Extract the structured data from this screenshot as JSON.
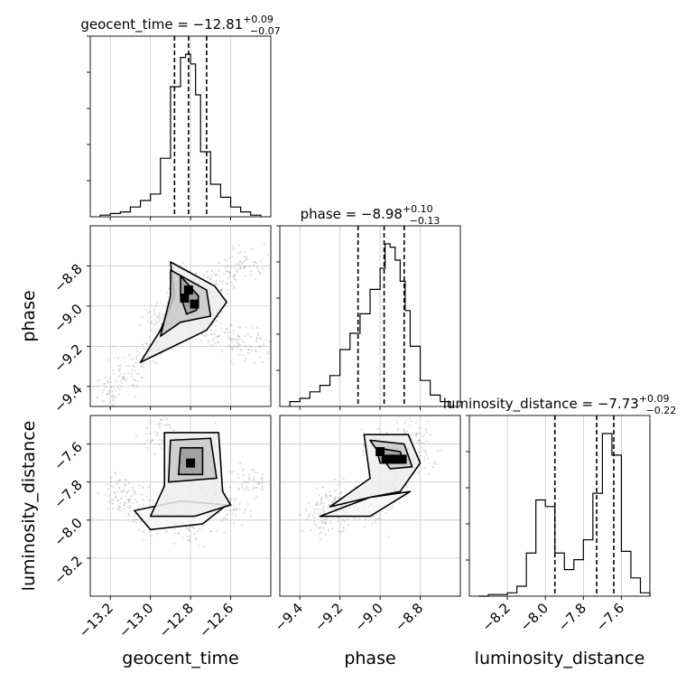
{
  "chart_data": {
    "type": "corner",
    "parameters": [
      "geocent_time",
      "phase",
      "luminosity_distance"
    ],
    "axis_labels": [
      "geocent_time",
      "phase",
      "luminosity_distance"
    ],
    "ranges": {
      "geocent_time": [
        -13.3,
        -12.4
      ],
      "phase": [
        -9.5,
        -8.6
      ],
      "luminosity_distance": [
        -8.4,
        -7.45
      ]
    },
    "ticks": {
      "geocent_time": [
        -13.2,
        -13.0,
        -12.8,
        -12.6
      ],
      "phase": [
        -9.4,
        -9.2,
        -9.0,
        -8.8
      ],
      "luminosity_distance": [
        -8.2,
        -8.0,
        -7.8,
        -7.6
      ]
    },
    "tick_labels": {
      "geocent_time": [
        "−13.2",
        "−13.0",
        "−12.8",
        "−12.6"
      ],
      "phase": [
        "−9.4",
        "−9.2",
        "−9.0",
        "−8.8"
      ],
      "luminosity_distance": [
        "−8.2",
        "−8.0",
        "−7.8",
        "−7.6"
      ]
    },
    "grid": true,
    "summaries": [
      {
        "parameter": "geocent_time",
        "label": "geocent_time",
        "median": -12.81,
        "plus": 0.09,
        "minus": 0.07,
        "median_text": "−12.81",
        "plus_text": "+0.09",
        "minus_text": "−0.07"
      },
      {
        "parameter": "phase",
        "label": "phase",
        "median": -8.98,
        "plus": 0.1,
        "minus": 0.13,
        "median_text": "−8.98",
        "plus_text": "+0.10",
        "minus_text": "−0.13"
      },
      {
        "parameter": "luminosity_distance",
        "label": "luminosity_distance",
        "median": -7.73,
        "plus": 0.09,
        "minus": 0.22,
        "median_text": "−7.73",
        "plus_text": "+0.09",
        "minus_text": "−0.22"
      }
    ],
    "histograms": {
      "geocent_time": {
        "bins": [
          -13.25,
          -13.2,
          -13.15,
          -13.1,
          -13.05,
          -13.0,
          -12.95,
          -12.9,
          -12.85,
          -12.825,
          -12.8,
          -12.775,
          -12.75,
          -12.7,
          -12.65,
          -12.6,
          -12.55,
          -12.5,
          -12.45
        ],
        "counts": [
          0.01,
          0.02,
          0.03,
          0.06,
          0.1,
          0.14,
          0.36,
          0.8,
          0.98,
          1.0,
          0.94,
          0.75,
          0.4,
          0.2,
          0.12,
          0.06,
          0.03,
          0.01
        ]
      },
      "phase": {
        "bins": [
          -9.45,
          -9.4,
          -9.35,
          -9.3,
          -9.25,
          -9.2,
          -9.15,
          -9.1,
          -9.05,
          -9.0,
          -8.975,
          -8.95,
          -8.925,
          -8.9,
          -8.875,
          -8.85,
          -8.8,
          -8.75,
          -8.7,
          -8.65
        ],
        "counts": [
          0.03,
          0.05,
          0.09,
          0.13,
          0.19,
          0.35,
          0.45,
          0.57,
          0.72,
          0.85,
          1.0,
          0.98,
          0.9,
          0.77,
          0.59,
          0.37,
          0.16,
          0.07,
          0.03
        ]
      },
      "luminosity_distance": {
        "bins": [
          -8.35,
          -8.3,
          -8.25,
          -8.2,
          -8.15,
          -8.1,
          -8.05,
          -8.0,
          -7.95,
          -7.9,
          -7.85,
          -7.8,
          -7.75,
          -7.7,
          -7.65,
          -7.6,
          -7.55,
          -7.5,
          -7.45
        ],
        "counts": [
          0.0,
          0.01,
          0.01,
          0.02,
          0.06,
          0.26,
          0.58,
          0.54,
          0.26,
          0.16,
          0.22,
          0.34,
          0.62,
          0.98,
          0.85,
          0.27,
          0.11,
          0.02
        ]
      }
    },
    "pairs": [
      {
        "x": "geocent_time",
        "y": "phase",
        "points": [
          [
            -13.2,
            -9.42
          ],
          [
            -13.1,
            -9.32
          ],
          [
            -13.0,
            -9.22
          ],
          [
            -12.9,
            -9.1
          ],
          [
            -12.8,
            -9.0
          ],
          [
            -12.72,
            -8.93
          ],
          [
            -12.62,
            -8.85
          ],
          [
            -12.52,
            -8.78
          ],
          [
            -12.83,
            -8.9
          ],
          [
            -12.77,
            -8.98
          ],
          [
            -12.7,
            -9.1
          ],
          [
            -12.6,
            -9.15
          ],
          [
            -12.5,
            -9.2
          ],
          [
            -12.95,
            -9.05
          ]
        ],
        "dense_bins": [
          [
            -12.81,
            -8.92
          ],
          [
            -12.78,
            -8.99
          ],
          [
            -12.83,
            -8.96
          ]
        ],
        "contours": [
          [
            [
              -12.85,
              -8.85
            ],
            [
              -12.76,
              -8.95
            ],
            [
              -12.77,
              -9.02
            ],
            [
              -12.82,
              -9.04
            ],
            [
              -12.85,
              -8.95
            ]
          ],
          [
            [
              -12.9,
              -8.82
            ],
            [
              -12.72,
              -8.92
            ],
            [
              -12.7,
              -9.05
            ],
            [
              -12.85,
              -9.08
            ],
            [
              -12.95,
              -9.15
            ],
            [
              -12.9,
              -8.95
            ]
          ],
          [
            [
              -12.9,
              -8.78
            ],
            [
              -12.68,
              -8.9
            ],
            [
              -12.62,
              -8.98
            ],
            [
              -12.72,
              -9.12
            ],
            [
              -13.05,
              -9.28
            ],
            [
              -12.95,
              -9.12
            ],
            [
              -12.88,
              -8.95
            ]
          ]
        ]
      },
      {
        "x": "geocent_time",
        "y": "luminosity_distance",
        "points": [
          [
            -13.1,
            -7.9
          ],
          [
            -12.9,
            -7.95
          ],
          [
            -12.7,
            -7.85
          ],
          [
            -12.6,
            -7.95
          ],
          [
            -12.85,
            -7.6
          ],
          [
            -12.75,
            -7.65
          ],
          [
            -13.0,
            -8.0
          ],
          [
            -12.8,
            -8.05
          ],
          [
            -12.5,
            -7.8
          ],
          [
            -13.15,
            -7.85
          ],
          [
            -12.95,
            -7.55
          ]
        ],
        "dense_bins": [
          [
            -12.8,
            -7.7
          ]
        ],
        "contours": [
          [
            [
              -12.85,
              -7.62
            ],
            [
              -12.74,
              -7.62
            ],
            [
              -12.74,
              -7.76
            ],
            [
              -12.86,
              -7.76
            ]
          ],
          [
            [
              -12.9,
              -7.58
            ],
            [
              -12.7,
              -7.57
            ],
            [
              -12.67,
              -7.78
            ],
            [
              -12.91,
              -7.8
            ]
          ],
          [
            [
              -12.93,
              -7.54
            ],
            [
              -12.66,
              -7.54
            ],
            [
              -12.64,
              -7.85
            ],
            [
              -12.6,
              -7.92
            ],
            [
              -12.78,
              -7.98
            ],
            [
              -13.0,
              -7.98
            ],
            [
              -12.93,
              -7.82
            ]
          ],
          [
            [
              -13.08,
              -7.95
            ],
            [
              -12.85,
              -7.9
            ],
            [
              -12.62,
              -7.92
            ],
            [
              -12.74,
              -8.02
            ],
            [
              -13.0,
              -8.05
            ]
          ]
        ]
      },
      {
        "x": "phase",
        "y": "luminosity_distance",
        "points": [
          [
            -9.1,
            -7.9
          ],
          [
            -9.2,
            -7.95
          ],
          [
            -9.0,
            -7.6
          ],
          [
            -8.9,
            -7.7
          ],
          [
            -8.85,
            -7.55
          ],
          [
            -9.3,
            -8.0
          ],
          [
            -8.95,
            -7.85
          ],
          [
            -9.05,
            -7.95
          ],
          [
            -8.8,
            -7.65
          ],
          [
            -9.25,
            -7.9
          ]
        ],
        "dense_bins": [
          [
            -9.0,
            -7.64
          ],
          [
            -8.97,
            -7.68
          ],
          [
            -8.93,
            -7.68
          ],
          [
            -8.89,
            -7.68
          ]
        ],
        "contours": [
          [
            [
              -9.02,
              -7.62
            ],
            [
              -8.9,
              -7.64
            ],
            [
              -8.88,
              -7.7
            ],
            [
              -9.0,
              -7.7
            ]
          ],
          [
            [
              -9.05,
              -7.58
            ],
            [
              -8.88,
              -7.6
            ],
            [
              -8.84,
              -7.72
            ],
            [
              -8.95,
              -7.73
            ]
          ],
          [
            [
              -9.08,
              -7.55
            ],
            [
              -8.86,
              -7.55
            ],
            [
              -8.8,
              -7.7
            ],
            [
              -8.9,
              -7.85
            ],
            [
              -9.05,
              -7.88
            ],
            [
              -9.25,
              -7.93
            ],
            [
              -9.05,
              -7.78
            ]
          ],
          [
            [
              -9.3,
              -7.98
            ],
            [
              -9.05,
              -7.88
            ],
            [
              -8.85,
              -7.85
            ],
            [
              -9.05,
              -7.98
            ]
          ]
        ]
      }
    ]
  }
}
